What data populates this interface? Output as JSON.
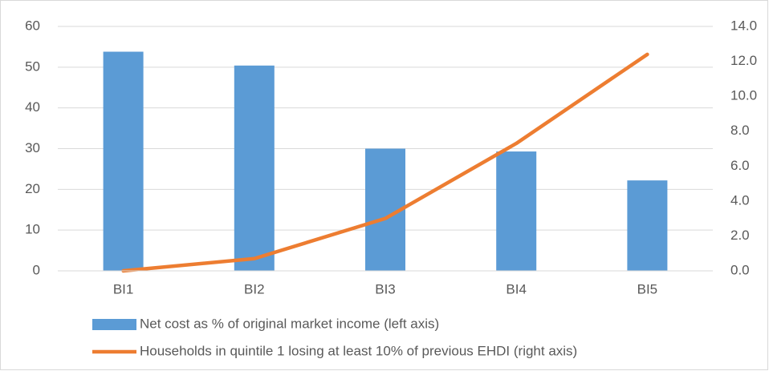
{
  "chart_data": {
    "type": "bar-line",
    "categories": [
      "BI1",
      "BI2",
      "BI3",
      "BI4",
      "BI5"
    ],
    "series": [
      {
        "name": "Net cost as % of original market income (left axis)",
        "type": "bar",
        "color": "#5b9bd5",
        "values": [
          53.8,
          50.4,
          30.0,
          29.3,
          22.2
        ]
      },
      {
        "name": "Households in quintile 1 losing at least 10% of previous EHDI (right axis)",
        "type": "line",
        "axis": "y2",
        "color": "#ed7d31",
        "values": [
          0.0,
          0.7,
          3.0,
          7.3,
          12.4
        ]
      }
    ],
    "ylim": [
      0,
      60
    ],
    "yticks": [
      0,
      10,
      20,
      30,
      40,
      50,
      60
    ],
    "y2lim": [
      0,
      14
    ],
    "y2ticks": [
      {
        "value": 0,
        "label": "0.0"
      },
      {
        "value": 2,
        "label": "2.0"
      },
      {
        "value": 4,
        "label": "4.0"
      },
      {
        "value": 6,
        "label": "6.0"
      },
      {
        "value": 8,
        "label": "8.0"
      },
      {
        "value": 10,
        "label": "10.0"
      },
      {
        "value": 12,
        "label": "12.0"
      },
      {
        "value": 14,
        "label": "14.0"
      }
    ],
    "grid": true,
    "legend": "bottom"
  }
}
